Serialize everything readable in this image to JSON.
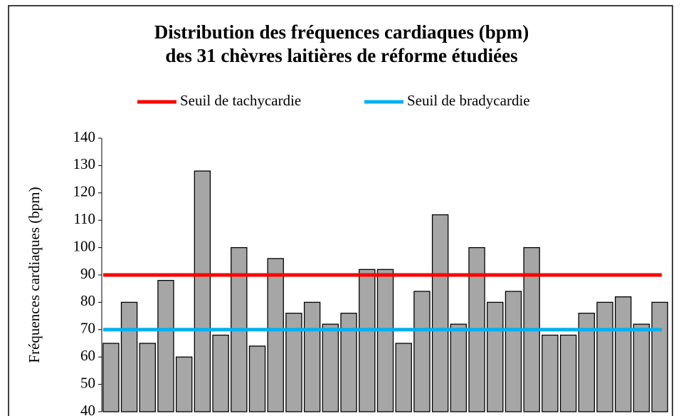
{
  "chart_data": {
    "type": "bar",
    "title": [
      "Distribution des fréquences cardiaques (bpm)",
      "des 31 chèvres laitières de réforme étudiées"
    ],
    "ylabel": "Fréquences cardiaques (bpm)",
    "categories": [
      null,
      null,
      null,
      null,
      null,
      null,
      null,
      null,
      null,
      null,
      null,
      null,
      null,
      null,
      null,
      null,
      null,
      null,
      null,
      null,
      null,
      null,
      null,
      null,
      null,
      null,
      null,
      null,
      null,
      null,
      null
    ],
    "values": [
      65,
      80,
      65,
      88,
      60,
      128,
      68,
      100,
      64,
      96,
      76,
      80,
      72,
      76,
      92,
      92,
      65,
      84,
      112,
      72,
      100,
      80,
      84,
      100,
      68,
      68,
      76,
      80,
      82,
      72,
      80
    ],
    "color": "#a6a6a6",
    "lines": [
      {
        "name": "Seuil de tachycardie",
        "color": "#ff0000",
        "value": 90
      },
      {
        "name": "Seuil de bradycardie",
        "color": "#00b0f0",
        "value": 70
      }
    ],
    "ylim": [
      40,
      140
    ],
    "yticks": [
      40,
      50,
      60,
      70,
      80,
      90,
      100,
      110,
      120,
      130,
      140
    ],
    "grid": false
  }
}
